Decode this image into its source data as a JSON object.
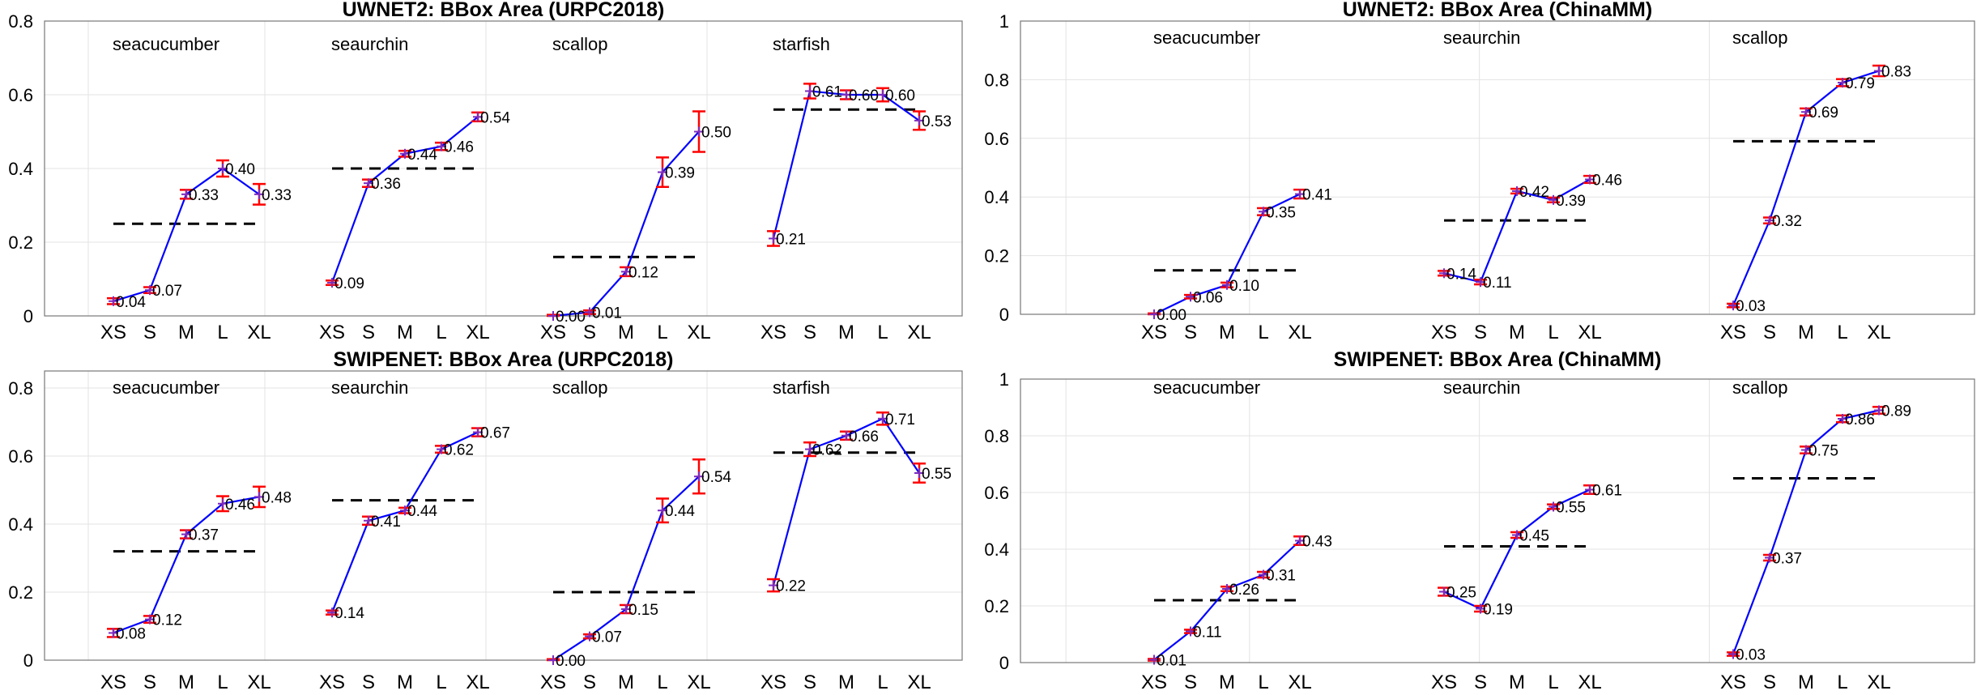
{
  "chart_data": [
    {
      "type": "line",
      "title": "UWNET2: BBox Area (URPC2018)",
      "ylim": [
        0,
        0.8
      ],
      "yticks": [
        "0",
        "0.2",
        "0.4",
        "0.6",
        "0.8"
      ],
      "grid": true,
      "groups": [
        {
          "name": "seacucumber",
          "x": [
            "XS",
            "S",
            "M",
            "L",
            "XL"
          ],
          "values": [
            0.04,
            0.07,
            0.33,
            0.4,
            0.33
          ],
          "labels": [
            "0.04",
            "0.07",
            "0.33",
            "0.40",
            "0.33"
          ],
          "errors": [
            0.008,
            0.008,
            0.012,
            0.022,
            0.028
          ],
          "mean": 0.25
        },
        {
          "name": "seaurchin",
          "x": [
            "XS",
            "S",
            "M",
            "L",
            "XL"
          ],
          "values": [
            0.09,
            0.36,
            0.44,
            0.46,
            0.54
          ],
          "labels": [
            "0.09",
            "0.36",
            "0.44",
            "0.46",
            "0.54"
          ],
          "errors": [
            0.006,
            0.01,
            0.008,
            0.01,
            0.012
          ],
          "mean": 0.4
        },
        {
          "name": "scallop",
          "x": [
            "XS",
            "S",
            "M",
            "L",
            "XL"
          ],
          "values": [
            0.0,
            0.01,
            0.12,
            0.39,
            0.5
          ],
          "labels": [
            "0.00",
            "0.01",
            "0.12",
            "0.39",
            "0.50"
          ],
          "errors": [
            0.003,
            0.005,
            0.012,
            0.04,
            0.055
          ],
          "mean": 0.16
        },
        {
          "name": "starfish",
          "x": [
            "XS",
            "S",
            "M",
            "L",
            "XL"
          ],
          "values": [
            0.21,
            0.61,
            0.6,
            0.6,
            0.53
          ],
          "labels": [
            "0.21",
            "0.61",
            "0.60",
            "0.60",
            "0.53"
          ],
          "errors": [
            0.02,
            0.02,
            0.012,
            0.018,
            0.025
          ],
          "mean": 0.56
        }
      ]
    },
    {
      "type": "line",
      "title": "UWNET2: BBox Area (ChinaMM)",
      "ylim": [
        0,
        1
      ],
      "yticks": [
        "0",
        "0.2",
        "0.4",
        "0.6",
        "0.8",
        "1"
      ],
      "grid": true,
      "groups": [
        {
          "name": "seacucumber",
          "x": [
            "XS",
            "S",
            "M",
            "L",
            "XL"
          ],
          "values": [
            0.0,
            0.06,
            0.1,
            0.35,
            0.41
          ],
          "labels": [
            "0.00",
            "0.06",
            "0.10",
            "0.35",
            "0.41"
          ],
          "errors": [
            0.003,
            0.006,
            0.008,
            0.012,
            0.015
          ],
          "mean": 0.15
        },
        {
          "name": "seaurchin",
          "x": [
            "XS",
            "S",
            "M",
            "L",
            "XL"
          ],
          "values": [
            0.14,
            0.11,
            0.42,
            0.39,
            0.46
          ],
          "labels": [
            "0.14",
            "0.11",
            "0.42",
            "0.39",
            "0.46"
          ],
          "errors": [
            0.008,
            0.008,
            0.008,
            0.008,
            0.012
          ],
          "mean": 0.32
        },
        {
          "name": "scallop",
          "x": [
            "XS",
            "S",
            "M",
            "L",
            "XL"
          ],
          "values": [
            0.03,
            0.32,
            0.69,
            0.79,
            0.83
          ],
          "labels": [
            "0.03",
            "0.32",
            "0.69",
            "0.79",
            "0.83"
          ],
          "errors": [
            0.006,
            0.01,
            0.012,
            0.012,
            0.018
          ],
          "mean": 0.59
        }
      ]
    },
    {
      "type": "line",
      "title": "SWIPENET: BBox Area (URPC2018)",
      "ylim": [
        0,
        0.85
      ],
      "yticks": [
        "0",
        "0.2",
        "0.4",
        "0.6",
        "0.8"
      ],
      "grid": true,
      "groups": [
        {
          "name": "seacucumber",
          "x": [
            "XS",
            "S",
            "M",
            "L",
            "XL"
          ],
          "values": [
            0.08,
            0.12,
            0.37,
            0.46,
            0.48
          ],
          "labels": [
            "0.08",
            "0.12",
            "0.37",
            "0.46",
            "0.48"
          ],
          "errors": [
            0.012,
            0.01,
            0.012,
            0.022,
            0.03
          ],
          "mean": 0.32
        },
        {
          "name": "seaurchin",
          "x": [
            "XS",
            "S",
            "M",
            "L",
            "XL"
          ],
          "values": [
            0.14,
            0.41,
            0.44,
            0.62,
            0.67
          ],
          "labels": [
            "0.14",
            "0.41",
            "0.44",
            "0.62",
            "0.67"
          ],
          "errors": [
            0.006,
            0.012,
            0.008,
            0.01,
            0.012
          ],
          "mean": 0.47
        },
        {
          "name": "scallop",
          "x": [
            "XS",
            "S",
            "M",
            "L",
            "XL"
          ],
          "values": [
            0.0,
            0.07,
            0.15,
            0.44,
            0.54
          ],
          "labels": [
            "0.00",
            "0.07",
            "0.15",
            "0.44",
            "0.54"
          ],
          "errors": [
            0.003,
            0.006,
            0.012,
            0.035,
            0.05
          ],
          "mean": 0.2
        },
        {
          "name": "starfish",
          "x": [
            "XS",
            "S",
            "M",
            "L",
            "XL"
          ],
          "values": [
            0.22,
            0.62,
            0.66,
            0.71,
            0.55
          ],
          "labels": [
            "0.22",
            "0.62",
            "0.66",
            "0.71",
            "0.55"
          ],
          "errors": [
            0.018,
            0.02,
            0.012,
            0.018,
            0.028
          ],
          "mean": 0.61
        }
      ]
    },
    {
      "type": "line",
      "title": "SWIPENET: BBox Area (ChinaMM)",
      "ylim": [
        0,
        1
      ],
      "yticks": [
        "0",
        "0.2",
        "0.4",
        "0.6",
        "0.8",
        "1"
      ],
      "grid": true,
      "groups": [
        {
          "name": "seacucumber",
          "x": [
            "XS",
            "S",
            "M",
            "L",
            "XL"
          ],
          "values": [
            0.01,
            0.11,
            0.26,
            0.31,
            0.43
          ],
          "labels": [
            "0.01",
            "0.11",
            "0.26",
            "0.31",
            "0.43"
          ],
          "errors": [
            0.003,
            0.006,
            0.008,
            0.01,
            0.015
          ],
          "mean": 0.22
        },
        {
          "name": "seaurchin",
          "x": [
            "XS",
            "S",
            "M",
            "L",
            "XL"
          ],
          "values": [
            0.25,
            0.19,
            0.45,
            0.55,
            0.61
          ],
          "labels": [
            "0.25",
            "0.19",
            "0.45",
            "0.55",
            "0.61"
          ],
          "errors": [
            0.014,
            0.01,
            0.01,
            0.008,
            0.015
          ],
          "mean": 0.41
        },
        {
          "name": "scallop",
          "x": [
            "XS",
            "S",
            "M",
            "L",
            "XL"
          ],
          "values": [
            0.03,
            0.37,
            0.75,
            0.86,
            0.89
          ],
          "labels": [
            "0.03",
            "0.37",
            "0.75",
            "0.86",
            "0.89"
          ],
          "errors": [
            0.006,
            0.01,
            0.012,
            0.012,
            0.012
          ],
          "mean": 0.65
        }
      ]
    }
  ],
  "colors": {
    "line": "#0000ff",
    "errorbar": "#ff0000",
    "marker": "#7b2cbf",
    "mean_line": "#000000",
    "grid": "#e3e3e3",
    "axis": "#777777"
  }
}
